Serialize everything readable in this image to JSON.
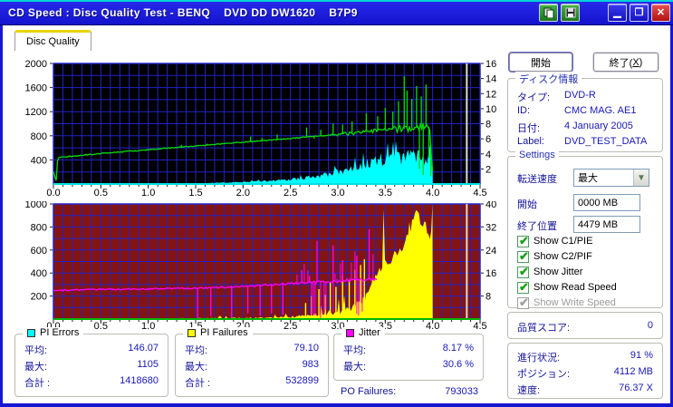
{
  "titlebar": {
    "title": "CD Speed : Disc Quality Test - BENQ    DVD DD DW1620    B7P9",
    "buttons": [
      "copy",
      "save",
      "minimize",
      "maximize",
      "close"
    ]
  },
  "tab": {
    "label": "Disc Quality"
  },
  "actions": {
    "start": "開始",
    "exit_pre": "終了(",
    "exit_key": "X",
    "exit_post": ")"
  },
  "disc_info": {
    "title": "ディスク情報",
    "rows": [
      {
        "label": "タイプ:",
        "value": "DVD-R"
      },
      {
        "label": "ID:",
        "value": "CMC MAG. AE1"
      },
      {
        "label": "日付:",
        "value": "4 January 2005"
      },
      {
        "label": "Label:",
        "value": "DVD_TEST_DATA"
      }
    ]
  },
  "settings": {
    "title": "Settings",
    "transfer_rate_label": "転送速度",
    "transfer_rate_value": "最大",
    "start_label": "開始",
    "start_value": "0000 MB",
    "end_label": "終了位置",
    "end_value": "4479 MB",
    "checkboxes": [
      {
        "label": "Show C1/PIE",
        "checked": true,
        "enabled": true
      },
      {
        "label": "Show C2/PIF",
        "checked": true,
        "enabled": true
      },
      {
        "label": "Show Jitter",
        "checked": true,
        "enabled": true
      },
      {
        "label": "Show Read Speed",
        "checked": true,
        "enabled": true
      },
      {
        "label": "Show Write Speed",
        "checked": true,
        "enabled": false
      }
    ]
  },
  "quality": {
    "label": "品質スコア:",
    "value": "0"
  },
  "progress": {
    "rows": [
      {
        "label": "進行状況:",
        "value": "91 %"
      },
      {
        "label": "ポジション:",
        "value": "4112 MB"
      },
      {
        "label": "速度:",
        "value": "76.37 X"
      }
    ]
  },
  "stats": {
    "pi_errors": {
      "title": "PI Errors",
      "color": "#00ffff",
      "rows": [
        {
          "label": "平均:",
          "value": "146.07"
        },
        {
          "label": "最大:",
          "value": "1105"
        },
        {
          "label": "合計 :",
          "value": "1418680"
        }
      ]
    },
    "pi_failures": {
      "title": "PI Failures",
      "color": "#ffff00",
      "rows": [
        {
          "label": "平均:",
          "value": "79.10"
        },
        {
          "label": "最大:",
          "value": "983"
        },
        {
          "label": "合計 :",
          "value": "532899"
        }
      ]
    },
    "jitter": {
      "title": "Jitter",
      "color": "#ff00ff",
      "rows": [
        {
          "label": "平均:",
          "value": "8.17 %"
        },
        {
          "label": "最大:",
          "value": "30.6 %"
        }
      ]
    },
    "po_failures": {
      "label": "PO Failures:",
      "value": "793033"
    }
  },
  "chart_data": {
    "charts": [
      {
        "id": "quality-top",
        "type": "area",
        "bg": "#000000",
        "grid_color": "#2323c8",
        "baseline_color": "#00e0e0",
        "marker": {
          "x": 4.36,
          "color": "#dadada"
        },
        "x": {
          "min": 0,
          "max": 4.5,
          "minor_step": 0.1,
          "labels": [
            "0.0",
            "0.5",
            "1.0",
            "1.5",
            "2.0",
            "2.5",
            "3.0",
            "3.5",
            "4.0",
            "4.5"
          ]
        },
        "y_left": {
          "min": 0,
          "max": 2000,
          "grid_step": 200,
          "labels": [
            "2000",
            "1600",
            "1200",
            "800",
            "400"
          ]
        },
        "y_right": {
          "min": 0,
          "max": 16,
          "labels": [
            "16",
            "14",
            "12",
            "10",
            "8",
            "6",
            "4",
            "2"
          ]
        },
        "series": [
          {
            "name": "PI Errors (C1/PIE)",
            "color": "#00ffff",
            "axis": "left",
            "style": "jagged-area",
            "end_x": 4.0,
            "jag": 0.55,
            "spike_chance": 0.05,
            "spike_mult": 1.25,
            "solid_above": 9999,
            "points": [
              [
                0,
                2
              ],
              [
                0.9,
                3
              ],
              [
                1.2,
                6
              ],
              [
                1.5,
                14
              ],
              [
                1.8,
                28
              ],
              [
                2.0,
                42
              ],
              [
                2.2,
                60
              ],
              [
                2.5,
                95
              ],
              [
                2.7,
                140
              ],
              [
                2.9,
                210
              ],
              [
                3.0,
                260
              ],
              [
                3.1,
                310
              ],
              [
                3.2,
                370
              ],
              [
                3.3,
                440
              ],
              [
                3.4,
                500
              ],
              [
                3.5,
                545
              ],
              [
                3.6,
                565
              ],
              [
                3.7,
                585
              ],
              [
                3.75,
                600
              ],
              [
                3.8,
                585
              ],
              [
                3.85,
                570
              ],
              [
                3.9,
                555
              ],
              [
                3.95,
                540
              ],
              [
                3.99,
                500
              ]
            ],
            "spikes": []
          },
          {
            "name": "Read Speed",
            "color": "#00e000",
            "axis": "right",
            "style": "line",
            "end_x": 4.0,
            "micro": 0.12,
            "noise": {
              "from": 2.9,
              "amp": 0.5
            },
            "points": [
              [
                0,
                1.6
              ],
              [
                0.03,
                0.4
              ],
              [
                0.045,
                3.5
              ],
              [
                0.5,
                4.05
              ],
              [
                1.0,
                4.55
              ],
              [
                1.5,
                5.05
              ],
              [
                2.0,
                5.55
              ],
              [
                2.5,
                6.05
              ],
              [
                3.0,
                6.6
              ],
              [
                3.5,
                7.15
              ],
              [
                3.9,
                7.55
              ],
              [
                3.97,
                7.6
              ],
              [
                4.0,
                0.9
              ]
            ],
            "spikes": [
              [
                1.35,
                5.2
              ],
              [
                1.62,
                5.35
              ],
              [
                2.08,
                6.3
              ],
              [
                2.2,
                6.1
              ],
              [
                2.36,
                6.55
              ],
              [
                2.67,
                7.5
              ],
              [
                2.75,
                6.0
              ],
              [
                2.82,
                7.2
              ],
              [
                2.95,
                8.0
              ],
              [
                3.05,
                7.9
              ],
              [
                3.15,
                8.3
              ],
              [
                3.3,
                9.4
              ],
              [
                3.42,
                9.0
              ],
              [
                3.5,
                10.1
              ],
              [
                3.58,
                9.6
              ],
              [
                3.64,
                11.0
              ],
              [
                3.7,
                14.3
              ],
              [
                3.73,
                12.4
              ],
              [
                3.78,
                11.3
              ],
              [
                3.83,
                13.0
              ],
              [
                3.86,
                2.0
              ],
              [
                3.88,
                11.6
              ],
              [
                3.9,
                1.2
              ],
              [
                3.93,
                13.2
              ],
              [
                3.96,
                3.5
              ],
              [
                3.98,
                1.0
              ]
            ]
          }
        ]
      },
      {
        "id": "quality-bottom",
        "type": "area",
        "bg": "#841414",
        "grid_color": "#2323c8",
        "baseline_color": "#00b400",
        "marker": {
          "x": 4.36,
          "color": "#dadada"
        },
        "x": {
          "min": 0,
          "max": 4.5,
          "minor_step": 0.1,
          "labels": [
            "0.0",
            "0.5",
            "1.0",
            "1.5",
            "2.0",
            "2.5",
            "3.0",
            "3.5",
            "4.0",
            "4.5"
          ]
        },
        "y_left": {
          "min": 0,
          "max": 1000,
          "grid_step": 100,
          "labels": [
            "1000",
            "800",
            "600",
            "400",
            "200"
          ]
        },
        "y_right": {
          "min": 0,
          "max": 40,
          "labels": [
            "40",
            "32",
            "24",
            "16",
            "8"
          ]
        },
        "series": [
          {
            "name": "PI Failures",
            "color": "#ffff00",
            "axis": "left",
            "style": "jagged-area",
            "end_x": 4.0,
            "jag": 0.4,
            "spike_chance": 0.07,
            "spike_mult": 1.9,
            "solid_above": 300,
            "points": [
              [
                0,
                3
              ],
              [
                1.3,
                4
              ],
              [
                1.5,
                10
              ],
              [
                1.8,
                14
              ],
              [
                2.1,
                16
              ],
              [
                2.4,
                22
              ],
              [
                2.6,
                35
              ],
              [
                2.8,
                60
              ],
              [
                3.0,
                90
              ],
              [
                3.1,
                120
              ],
              [
                3.2,
                170
              ],
              [
                3.3,
                260
              ],
              [
                3.35,
                340
              ],
              [
                3.4,
                420
              ],
              [
                3.5,
                520
              ],
              [
                3.6,
                620
              ],
              [
                3.7,
                740
              ],
              [
                3.78,
                900
              ],
              [
                3.82,
                960
              ],
              [
                3.88,
                900
              ],
              [
                3.93,
                860
              ],
              [
                3.97,
                800
              ],
              [
                4.0,
                780
              ]
            ],
            "spikes": [
              [
                2.66,
                140
              ],
              [
                2.72,
                200
              ],
              [
                2.8,
                260
              ],
              [
                2.87,
                210
              ],
              [
                2.92,
                320
              ],
              [
                2.98,
                280
              ],
              [
                3.05,
                380
              ],
              [
                3.12,
                340
              ],
              [
                3.18,
                430
              ],
              [
                3.24,
                470
              ],
              [
                3.28,
                520
              ]
            ]
          },
          {
            "name": "Jitter",
            "color": "#ff00ff",
            "axis": "right",
            "style": "line",
            "end_x": 3.42,
            "micro": 0.5,
            "noise": {
              "from": 2.0,
              "amp": 0.6
            },
            "dense_zone": {
              "from": 2.55,
              "to": 3.38,
              "up_max": 24,
              "density": 0.5
            },
            "points": [
              [
                0,
                9.9
              ],
              [
                0.5,
                10.3
              ],
              [
                1.0,
                10.5
              ],
              [
                1.5,
                10.7
              ],
              [
                2.0,
                11.3
              ],
              [
                2.4,
                12.1
              ],
              [
                2.8,
                12.9
              ],
              [
                3.1,
                13.4
              ],
              [
                3.42,
                13.8
              ]
            ],
            "spikes": [
              [
                1.52,
                0
              ],
              [
                1.66,
                1
              ],
              [
                1.88,
                0.5
              ],
              [
                2.05,
                2
              ],
              [
                2.18,
                1
              ],
              [
                2.3,
                2
              ],
              [
                2.42,
                1.5
              ],
              [
                2.62,
                17
              ],
              [
                2.7,
                15
              ],
              [
                2.78,
                27.2
              ],
              [
                2.95,
                25.6
              ],
              [
                3.05,
                20.5
              ],
              [
                3.2,
                22
              ],
              [
                3.33,
                31.2
              ]
            ]
          }
        ]
      }
    ]
  }
}
